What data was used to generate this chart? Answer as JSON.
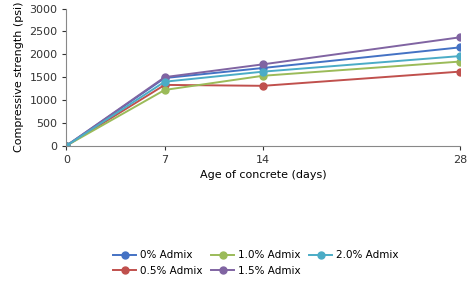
{
  "x": [
    0,
    7,
    14,
    28
  ],
  "series": [
    {
      "label": "0% Admix",
      "values": [
        0,
        1480,
        1700,
        2150
      ],
      "color": "#4472C4",
      "marker": "o"
    },
    {
      "label": "0.5% Admix",
      "values": [
        0,
        1330,
        1310,
        1620
      ],
      "color": "#C0504D",
      "marker": "o"
    },
    {
      "label": "1.0% Admix",
      "values": [
        0,
        1220,
        1530,
        1840
      ],
      "color": "#9BBB59",
      "marker": "o"
    },
    {
      "label": "1.5% Admix",
      "values": [
        0,
        1500,
        1780,
        2370
      ],
      "color": "#8064A2",
      "marker": "o"
    },
    {
      "label": "2.0% Admix",
      "values": [
        0,
        1400,
        1620,
        1960
      ],
      "color": "#4BACC6",
      "marker": "o"
    }
  ],
  "xlabel": "Age of concrete (days)",
  "ylabel": "Compressive strength (psi)",
  "xlim": [
    0,
    28
  ],
  "ylim": [
    0,
    3000
  ],
  "yticks": [
    0,
    500,
    1000,
    1500,
    2000,
    2500,
    3000
  ],
  "xticks": [
    0,
    7,
    14,
    28
  ],
  "legend_ncol": 3,
  "label_fontsize": 8,
  "tick_fontsize": 8,
  "legend_fontsize": 7.5,
  "linewidth": 1.4,
  "markersize": 5,
  "background_color": "#ffffff"
}
